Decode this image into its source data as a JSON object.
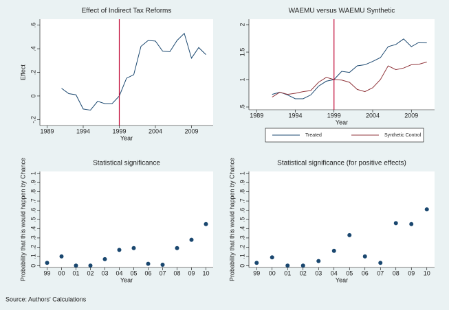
{
  "chart_data": [
    {
      "type": "line",
      "title": "Effect of Indirect Tax Reforms",
      "ylabel": "Effect",
      "xlabel": "Year",
      "x": [
        1991,
        1992,
        1993,
        1994,
        1995,
        1996,
        1997,
        1998,
        1999,
        2000,
        2001,
        2002,
        2003,
        2004,
        2005,
        2006,
        2007,
        2008,
        2009,
        2010,
        2011
      ],
      "values": [
        0.065,
        0.02,
        0.01,
        -0.11,
        -0.12,
        -0.045,
        -0.065,
        -0.065,
        0.0,
        0.15,
        0.18,
        0.42,
        0.47,
        0.465,
        0.38,
        0.375,
        0.47,
        0.53,
        0.32,
        0.41,
        0.35
      ],
      "color": "#1a476f",
      "xline": 1999,
      "xline_color": "#c10534",
      "xlim": [
        1988,
        2012
      ],
      "xticks": [
        1989,
        1994,
        1999,
        2004,
        2009
      ],
      "ylim": [
        -0.25,
        0.65
      ],
      "yticks": [
        {
          "value": -0.2,
          "label": "-.2"
        },
        0,
        {
          "value": 0.2,
          "label": ".2"
        },
        {
          "value": 0.4,
          "label": ".4"
        },
        {
          "value": 0.6,
          "label": ".6"
        }
      ],
      "grid": false
    },
    {
      "type": "line",
      "title": "WAEMU versus WAEMU Synthetic",
      "xlabel": "Year",
      "x": [
        1991,
        1992,
        1993,
        1994,
        1995,
        1996,
        1997,
        1998,
        1999,
        2000,
        2001,
        2002,
        2003,
        2004,
        2005,
        2006,
        2007,
        2008,
        2009,
        2010,
        2011
      ],
      "series": [
        {
          "name": "Treated",
          "color": "#1a476f",
          "values": [
            0.73,
            0.77,
            0.72,
            0.65,
            0.65,
            0.72,
            0.88,
            0.97,
            1.0,
            1.15,
            1.13,
            1.25,
            1.27,
            1.33,
            1.4,
            1.6,
            1.64,
            1.74,
            1.6,
            1.68,
            1.67
          ]
        },
        {
          "name": "Synthetic Control",
          "color": "#90353b",
          "values": [
            0.68,
            0.77,
            0.73,
            0.75,
            0.78,
            0.8,
            0.95,
            1.04,
            1.0,
            0.99,
            0.95,
            0.82,
            0.78,
            0.85,
            1.0,
            1.25,
            1.18,
            1.21,
            1.27,
            1.28,
            1.32
          ]
        }
      ],
      "xline": 1999,
      "xline_color": "#c10534",
      "xlim": [
        1988,
        2012
      ],
      "xticks": [
        1989,
        1994,
        1999,
        2004,
        2009
      ],
      "ylim": [
        0.45,
        2.1
      ],
      "yticks": [
        {
          "value": 0.5,
          "label": ".5"
        },
        1,
        {
          "value": 1.5,
          "label": "1.5"
        },
        2
      ],
      "grid": false
    },
    {
      "type": "scatter",
      "title": "Statistical significance",
      "ylabel": "Probability that this would happen by Chance",
      "xlabel": "Year",
      "categories": [
        "99",
        "00",
        "01",
        "02",
        "03",
        "04",
        "05",
        "06",
        "07",
        "08",
        "09",
        "10"
      ],
      "values": [
        0.03,
        0.1,
        0.0,
        0.0,
        0.07,
        0.17,
        0.19,
        0.02,
        0.01,
        0.19,
        0.28,
        0.45
      ],
      "color": "#1a476f",
      "ylim": [
        -0.02,
        1.02
      ],
      "yticks": [
        0,
        {
          "value": 0.1,
          "label": ".1"
        },
        {
          "value": 0.2,
          "label": ".2"
        },
        {
          "value": 0.3,
          "label": ".3"
        },
        {
          "value": 0.4,
          "label": ".4"
        },
        {
          "value": 0.5,
          "label": ".5"
        },
        {
          "value": 0.6,
          "label": ".6"
        },
        {
          "value": 0.7,
          "label": ".7"
        },
        {
          "value": 0.8,
          "label": ".8"
        },
        {
          "value": 0.9,
          "label": ".9"
        },
        1
      ],
      "grid": false
    },
    {
      "type": "scatter",
      "title": "Statistical significance (for positive effects)",
      "ylabel": "Probability that this would happen by Chance",
      "xlabel": "Year",
      "categories": [
        "99",
        "00",
        "01",
        "02",
        "03",
        "04",
        "05",
        "06",
        "07",
        "08",
        "09",
        "10"
      ],
      "values": [
        0.03,
        0.09,
        0.0,
        0.0,
        0.05,
        0.16,
        0.33,
        0.1,
        0.03,
        0.46,
        0.45,
        0.61
      ],
      "color": "#1a476f",
      "ylim": [
        -0.02,
        1.02
      ],
      "yticks": [
        0,
        {
          "value": 0.1,
          "label": ".1"
        },
        {
          "value": 0.2,
          "label": ".2"
        },
        {
          "value": 0.3,
          "label": ".3"
        },
        {
          "value": 0.4,
          "label": ".4"
        },
        {
          "value": 0.5,
          "label": ".5"
        },
        {
          "value": 0.6,
          "label": ".6"
        },
        {
          "value": 0.7,
          "label": ".7"
        },
        {
          "value": 0.8,
          "label": ".8"
        },
        {
          "value": 0.9,
          "label": ".9"
        },
        1
      ],
      "grid": false
    }
  ],
  "source": "Source: Authors' Calculations"
}
